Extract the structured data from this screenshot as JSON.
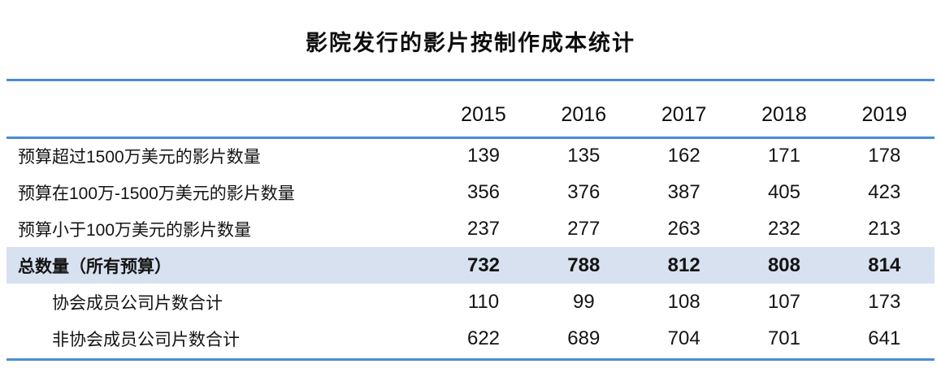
{
  "title": "影院发行的影片按制作成本统计",
  "colors": {
    "accent_line": "#4a8cd6",
    "total_row_bg": "#d7e1f0"
  },
  "table": {
    "years": [
      "2015",
      "2016",
      "2017",
      "2018",
      "2019"
    ],
    "rows": [
      {
        "label": "预算超过1500万美元的影片数量",
        "values": [
          "139",
          "135",
          "162",
          "171",
          "178"
        ],
        "style": "normal"
      },
      {
        "label": "预算在100万-1500万美元的影片数量",
        "values": [
          "356",
          "376",
          "387",
          "405",
          "423"
        ],
        "style": "normal"
      },
      {
        "label": "预算小于100万美元的影片数量",
        "values": [
          "237",
          "277",
          "263",
          "232",
          "213"
        ],
        "style": "normal"
      },
      {
        "label": "总数量（所有预算）",
        "values": [
          "732",
          "788",
          "812",
          "808",
          "814"
        ],
        "style": "total"
      },
      {
        "label": "协会成员公司片数合计",
        "values": [
          "110",
          "99",
          "108",
          "107",
          "173"
        ],
        "style": "indent"
      },
      {
        "label": "非协会成员公司片数合计",
        "values": [
          "622",
          "689",
          "704",
          "701",
          "641"
        ],
        "style": "indent"
      }
    ]
  },
  "chart_data": {
    "type": "table",
    "title": "影院发行的影片按制作成本统计",
    "columns": [
      "",
      "2015",
      "2016",
      "2017",
      "2018",
      "2019"
    ],
    "rows": [
      [
        "预算超过1500万美元的影片数量",
        139,
        135,
        162,
        171,
        178
      ],
      [
        "预算在100万-1500万美元的影片数量",
        356,
        376,
        387,
        405,
        423
      ],
      [
        "预算小于100万美元的影片数量",
        237,
        277,
        263,
        232,
        213
      ],
      [
        "总数量（所有预算）",
        732,
        788,
        812,
        808,
        814
      ],
      [
        "协会成员公司片数合计",
        110,
        99,
        108,
        107,
        173
      ],
      [
        "非协会成员公司片数合计",
        622,
        689,
        704,
        701,
        641
      ]
    ],
    "notes": "Row 4 (总数量) is a highlighted bold total row; last two rows are indented sub-rows."
  }
}
